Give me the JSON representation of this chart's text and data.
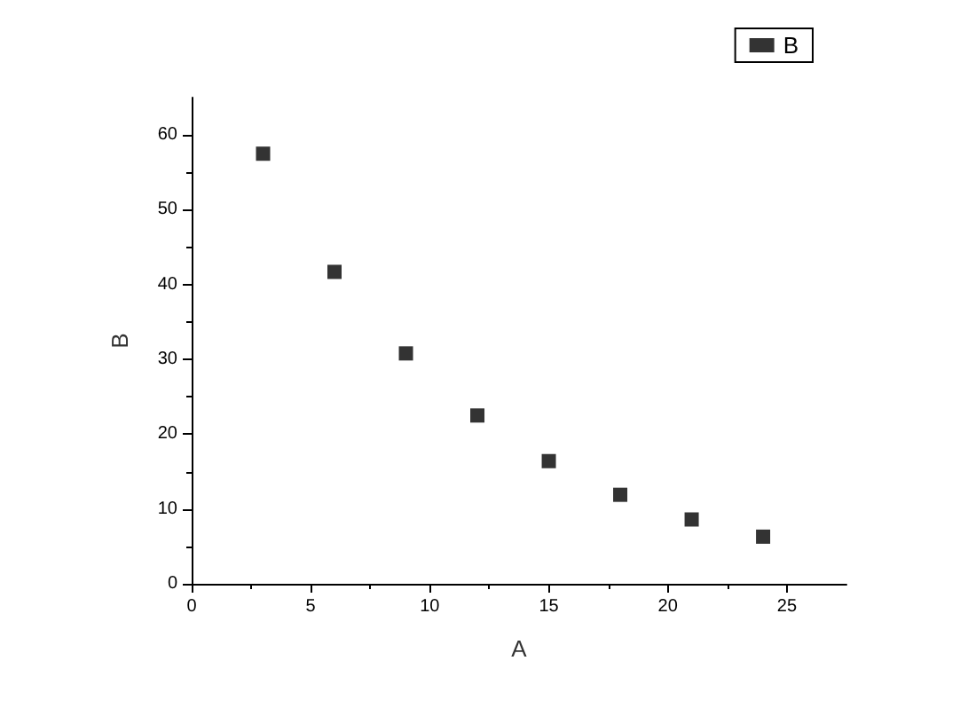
{
  "chart_data": {
    "type": "scatter",
    "xlabel": "A",
    "ylabel": "B",
    "x": [
      3,
      6,
      9,
      12,
      15,
      18,
      21,
      24
    ],
    "series": [
      {
        "name": "B",
        "color": "#000000",
        "values": [
          57.5,
          41.7,
          30.8,
          22.5,
          16.4,
          11.9,
          8.6,
          6.3
        ]
      }
    ],
    "xlim": [
      0,
      27.5
    ],
    "xticks": [
      0,
      5,
      10,
      15,
      20,
      25
    ],
    "ylim": [
      0,
      65
    ],
    "yticks": [
      0,
      10,
      20,
      30,
      40,
      50,
      60
    ],
    "grid": false,
    "legend": "top right",
    "marker": "square"
  }
}
